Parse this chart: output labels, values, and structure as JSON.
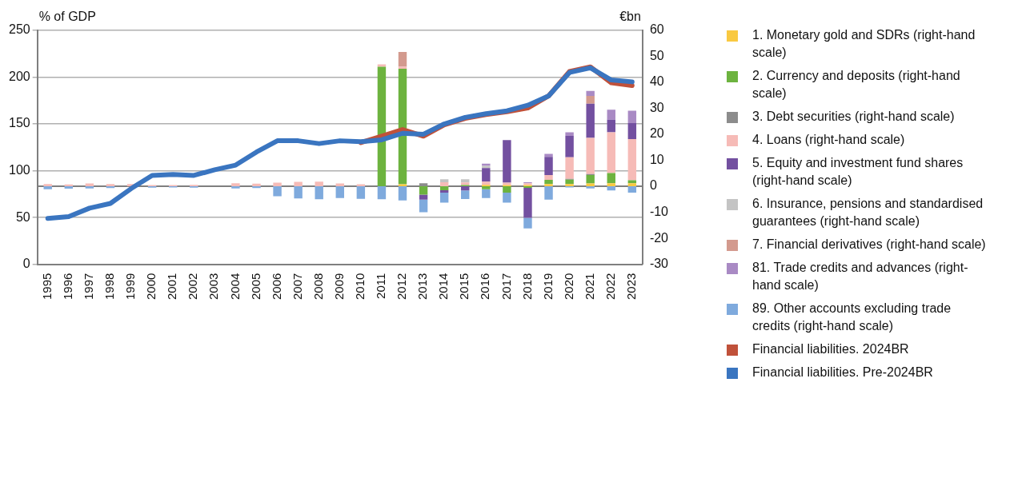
{
  "chart_data": {
    "type": "bar",
    "stacked": true,
    "ylabel": "% of GDP",
    "y2label": "€bn",
    "categories": [
      "1995",
      "1996",
      "1997",
      "1998",
      "1999",
      "2000",
      "2001",
      "2002",
      "2003",
      "2004",
      "2005",
      "2006",
      "2007",
      "2008",
      "2009",
      "2010",
      "2011",
      "2012",
      "2013",
      "2014",
      "2015",
      "2016",
      "2017",
      "2018",
      "2019",
      "2020",
      "2021",
      "2022",
      "2023"
    ],
    "ylim": [
      0,
      250
    ],
    "yticks": [
      0,
      50,
      100,
      150,
      200,
      250
    ],
    "y2lim": [
      -30,
      60
    ],
    "y2ticks": [
      -30,
      -20,
      -10,
      0,
      10,
      20,
      30,
      40,
      50,
      60
    ],
    "grid": "y",
    "legend": "right",
    "ref_lines": [
      {
        "axis": "y2",
        "value": 0,
        "color": "#7f7f7f"
      }
    ],
    "series": [
      {
        "name": "1. Monetary gold and SDRs (right-hand scale)",
        "color": "#f9c941",
        "axis": "y2",
        "values": [
          null,
          null,
          null,
          null,
          null,
          null,
          null,
          null,
          null,
          null,
          null,
          null,
          null,
          null,
          null,
          null,
          null,
          0.8,
          null,
          null,
          null,
          0.6,
          0.5,
          0.5,
          0.9,
          0.9,
          1.1,
          1.2,
          1.2
        ]
      },
      {
        "name": "2. Currency and deposits (right-hand scale)",
        "color": "#6db33f",
        "axis": "y2",
        "values": [
          null,
          null,
          null,
          null,
          null,
          null,
          null,
          null,
          null,
          null,
          null,
          null,
          null,
          null,
          null,
          null,
          46.0,
          44.4,
          -3.2,
          -1.5,
          0.5,
          -1.1,
          -2.4,
          -0.6,
          1.6,
          1.7,
          3.2,
          3.9,
          1.1
        ]
      },
      {
        "name": "3. Debt securities (right-hand scale)",
        "color": "#8c8c8c",
        "axis": "y2",
        "values": [
          null,
          null,
          null,
          null,
          null,
          null,
          null,
          null,
          null,
          null,
          null,
          null,
          null,
          null,
          null,
          null,
          null,
          null,
          1.2,
          null,
          null,
          null,
          null,
          null,
          null,
          0.3,
          0.4,
          null,
          null
        ]
      },
      {
        "name": "4. Loans (right-hand scale)",
        "color": "#f6bbb7",
        "axis": "y2",
        "values": [
          0.9,
          0.7,
          1.1,
          0.9,
          0.9,
          0.5,
          0.5,
          0.6,
          null,
          1.2,
          1.0,
          1.4,
          1.7,
          1.8,
          1.1,
          0.8,
          0.9,
          0.8,
          null,
          1.6,
          1.0,
          1.2,
          0.9,
          0.7,
          1.8,
          8.3,
          13.9,
          15.7,
          15.9
        ]
      },
      {
        "name": "5. Equity and investment fund shares (right-hand scale)",
        "color": "#7350a0",
        "axis": "y2",
        "values": [
          null,
          null,
          null,
          null,
          null,
          null,
          null,
          null,
          null,
          null,
          null,
          null,
          null,
          null,
          null,
          null,
          null,
          null,
          -1.9,
          -0.9,
          -1.6,
          5.2,
          16.4,
          -11.5,
          7.0,
          8.2,
          13.2,
          4.8,
          6.1
        ]
      },
      {
        "name": "6. Insurance, pensions and standardised guarantees (right-hand scale)",
        "color": "#c4c4c4",
        "axis": "y2",
        "values": [
          null,
          null,
          null,
          null,
          null,
          null,
          null,
          null,
          null,
          null,
          null,
          null,
          null,
          null,
          null,
          null,
          null,
          null,
          null,
          1.1,
          1.2,
          0.9,
          null,
          null,
          null,
          null,
          null,
          null,
          null
        ]
      },
      {
        "name": "7. Financial derivatives (right-hand scale)",
        "color": "#d39a8e",
        "axis": "y2",
        "values": [
          null,
          null,
          null,
          null,
          null,
          null,
          null,
          null,
          null,
          null,
          null,
          null,
          null,
          null,
          null,
          null,
          null,
          5.7,
          null,
          null,
          null,
          null,
          null,
          null,
          null,
          null,
          3.0,
          null,
          null
        ]
      },
      {
        "name": "81. Trade credits and advances (right-hand scale)",
        "color": "#a98ac4",
        "axis": "y2",
        "values": [
          null,
          null,
          null,
          null,
          null,
          null,
          null,
          null,
          null,
          null,
          null,
          null,
          null,
          null,
          null,
          null,
          null,
          null,
          null,
          null,
          null,
          0.8,
          null,
          0.4,
          1.2,
          1.4,
          1.9,
          3.9,
          4.8
        ]
      },
      {
        "name": "89. Other accounts excluding trade credits (right-hand scale)",
        "color": "#7faadd",
        "axis": "y2",
        "values": [
          -1.1,
          -0.9,
          -0.8,
          -0.7,
          null,
          -0.5,
          -0.4,
          -0.5,
          null,
          -0.8,
          -0.7,
          -3.8,
          -4.7,
          -5.0,
          -4.5,
          -4.8,
          -5.0,
          -5.4,
          -4.9,
          -3.9,
          -3.3,
          -3.4,
          -3.9,
          -4.1,
          -5.1,
          -0.4,
          -0.8,
          -1.6,
          -2.4
        ]
      },
      {
        "name": "Financial liabilities. 2024BR",
        "color": "#c0513a",
        "type": "line",
        "values": [
          null,
          null,
          null,
          null,
          null,
          null,
          null,
          null,
          null,
          null,
          null,
          null,
          null,
          null,
          null,
          130,
          137,
          144,
          137,
          149,
          156,
          160,
          163,
          167,
          180,
          206,
          211,
          194,
          191
        ]
      },
      {
        "name": "Financial liabilities. Pre-2024BR",
        "color": "#3a75c0",
        "type": "line",
        "values": [
          49,
          51,
          60,
          65,
          81,
          95,
          96,
          95,
          101,
          106,
          120,
          132,
          132,
          129,
          132,
          131,
          133,
          140,
          139,
          150,
          157,
          161,
          164,
          170,
          180,
          205,
          210,
          197,
          195
        ]
      }
    ]
  }
}
